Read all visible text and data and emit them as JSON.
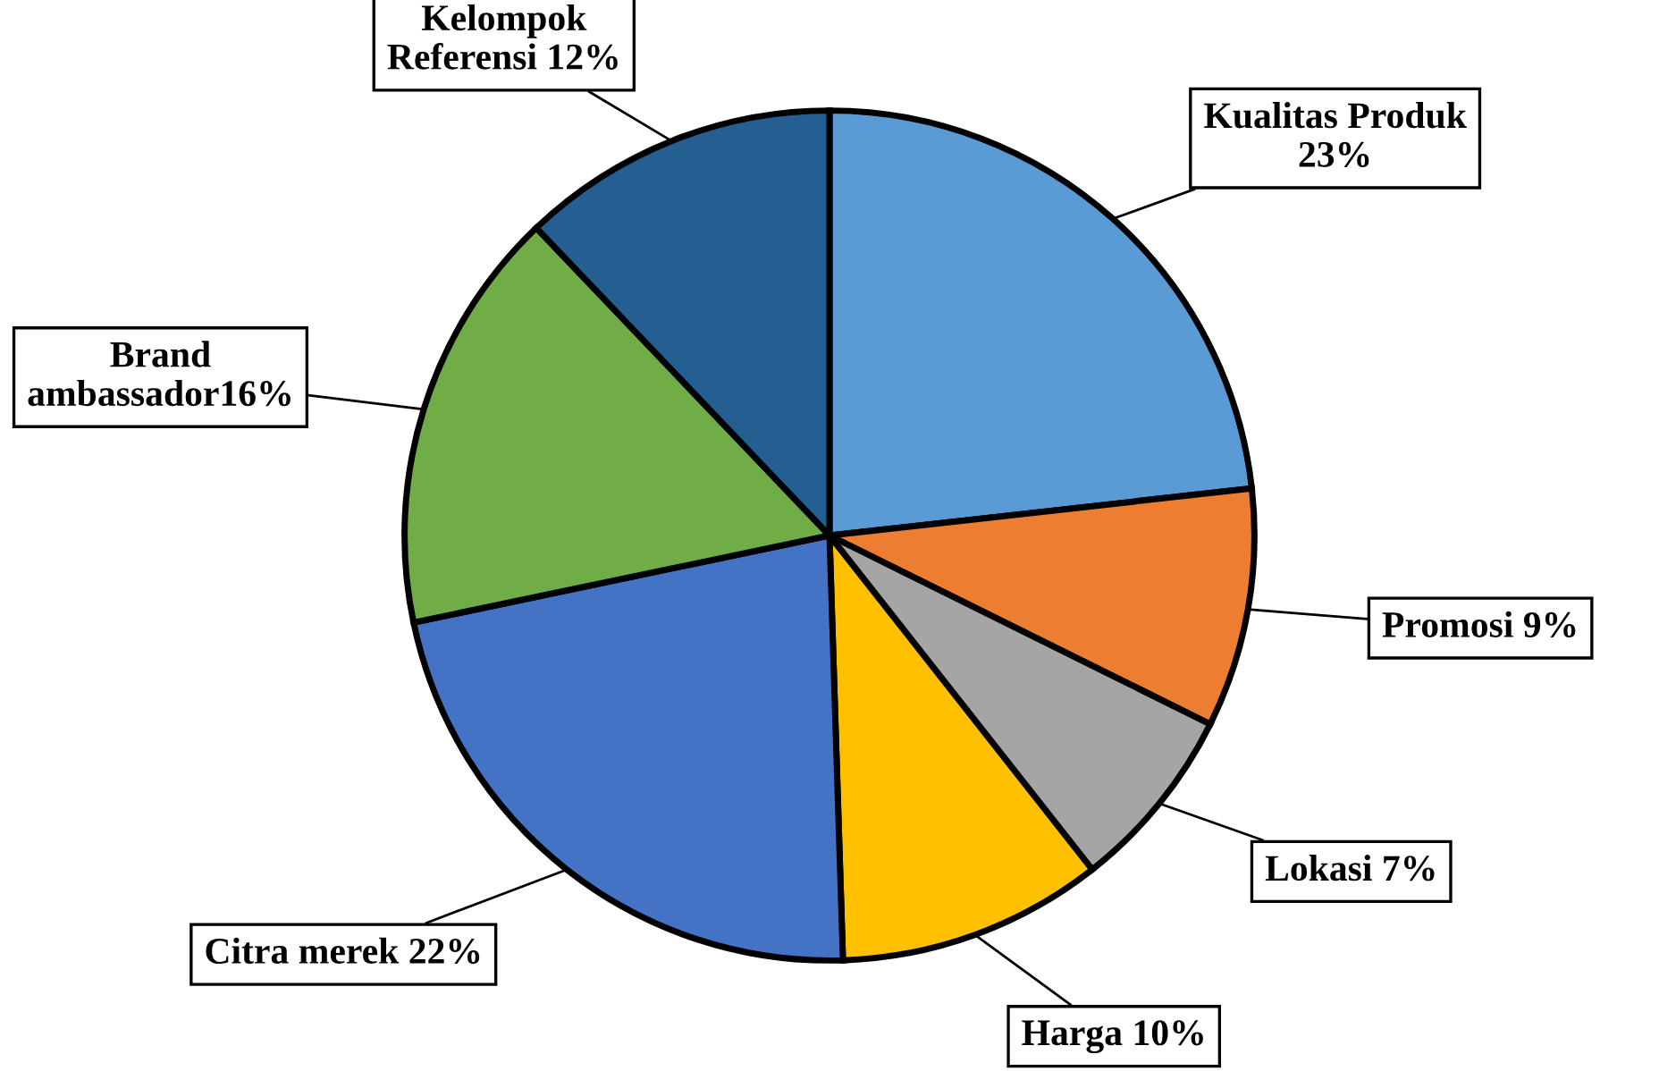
{
  "chart_data": {
    "type": "pie",
    "categories": [
      "Kualitas Produk\n23%",
      "Promosi 9%",
      "Lokasi 7%",
      "Harga 10%",
      "Citra merek 22%",
      "Brand\nambassador16%",
      "Kelompok\nReferensi 12%"
    ],
    "values": [
      23,
      9,
      7,
      10,
      22,
      16,
      12
    ],
    "colors": [
      "#5b9bd5",
      "#ed7d31",
      "#a5a5a5",
      "#ffc000",
      "#4472c4",
      "#70ad47",
      "#255e91"
    ]
  }
}
